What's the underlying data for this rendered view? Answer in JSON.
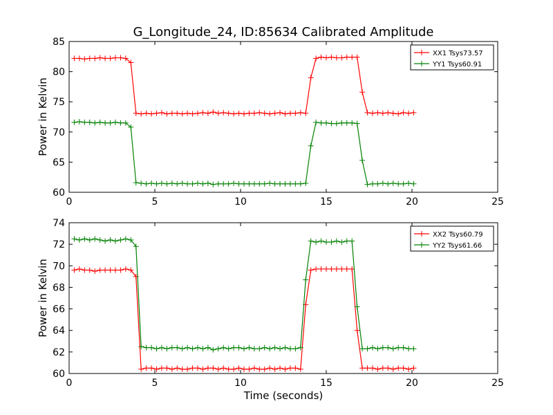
{
  "chart_data": [
    {
      "type": "line",
      "title": "G_Longitude_24, ID:85634 Calibrated Amplitude",
      "xlabel": "",
      "ylabel": "Power in Kelvin",
      "xlim": [
        0,
        25
      ],
      "ylim": [
        60,
        85
      ],
      "xticks": [
        "0",
        "5",
        "10",
        "15",
        "20",
        "25"
      ],
      "yticks": [
        "60",
        "65",
        "70",
        "75",
        "80",
        "85"
      ],
      "legend_position": "top-right",
      "grid": false,
      "x": [
        0.3,
        0.6,
        0.9,
        1.2,
        1.5,
        1.8,
        2.1,
        2.4,
        2.7,
        3.0,
        3.3,
        3.6,
        3.9,
        4.2,
        4.5,
        4.8,
        5.1,
        5.4,
        5.7,
        6.0,
        6.3,
        6.6,
        6.9,
        7.2,
        7.5,
        7.8,
        8.1,
        8.4,
        8.7,
        9.0,
        9.3,
        9.6,
        9.9,
        10.2,
        10.5,
        10.8,
        11.1,
        11.4,
        11.7,
        12.0,
        12.3,
        12.6,
        12.9,
        13.2,
        13.5,
        13.8,
        14.1,
        14.4,
        14.7,
        15.0,
        15.3,
        15.6,
        15.9,
        16.2,
        16.5,
        16.8,
        17.1,
        17.4,
        17.7,
        18.0,
        18.3,
        18.6,
        18.9,
        19.2,
        19.5,
        19.8,
        20.1
      ],
      "series": [
        {
          "name": "XX1 Tsys73.57",
          "color": "#ff0000",
          "values": [
            82.2,
            82.2,
            82.1,
            82.2,
            82.2,
            82.3,
            82.2,
            82.2,
            82.3,
            82.3,
            82.2,
            81.5,
            73.1,
            73.0,
            73.1,
            73.0,
            73.1,
            73.2,
            73.0,
            73.1,
            73.1,
            73.0,
            73.1,
            73.0,
            73.1,
            73.2,
            73.1,
            73.3,
            73.1,
            73.2,
            73.1,
            73.0,
            73.1,
            73.0,
            73.1,
            73.1,
            73.2,
            73.1,
            73.0,
            73.1,
            73.2,
            73.0,
            73.1,
            73.1,
            73.2,
            73.1,
            79.0,
            82.2,
            82.4,
            82.3,
            82.4,
            82.3,
            82.3,
            82.4,
            82.4,
            82.4,
            76.6,
            73.2,
            73.1,
            73.2,
            73.1,
            73.2,
            73.1,
            73.0,
            73.2,
            73.1,
            73.2
          ]
        },
        {
          "name": "YY1 Tsys60.91",
          "color": "#008000",
          "values": [
            71.6,
            71.7,
            71.6,
            71.6,
            71.5,
            71.6,
            71.5,
            71.5,
            71.6,
            71.5,
            71.5,
            70.8,
            61.6,
            61.5,
            61.4,
            61.5,
            61.4,
            61.5,
            61.4,
            61.5,
            61.4,
            61.5,
            61.4,
            61.4,
            61.5,
            61.4,
            61.5,
            61.3,
            61.4,
            61.4,
            61.4,
            61.5,
            61.4,
            61.4,
            61.4,
            61.4,
            61.4,
            61.4,
            61.5,
            61.4,
            61.4,
            61.4,
            61.4,
            61.4,
            61.4,
            61.5,
            67.7,
            71.6,
            71.5,
            71.5,
            71.4,
            71.4,
            71.5,
            71.5,
            71.5,
            71.4,
            65.3,
            61.3,
            61.4,
            61.4,
            61.5,
            61.4,
            61.5,
            61.4,
            61.4,
            61.5,
            61.4
          ]
        }
      ]
    },
    {
      "type": "line",
      "title": "",
      "xlabel": "Time (seconds)",
      "ylabel": "Power in Kelvin",
      "xlim": [
        0,
        25
      ],
      "ylim": [
        60,
        74
      ],
      "xticks": [
        "0",
        "5",
        "10",
        "15",
        "20",
        "25"
      ],
      "yticks": [
        "60",
        "62",
        "64",
        "66",
        "68",
        "70",
        "72",
        "74"
      ],
      "legend_position": "top-right",
      "grid": false,
      "x": [
        0.3,
        0.6,
        0.9,
        1.2,
        1.5,
        1.8,
        2.1,
        2.4,
        2.7,
        3.0,
        3.3,
        3.6,
        3.9,
        4.2,
        4.5,
        4.8,
        5.1,
        5.4,
        5.7,
        6.0,
        6.3,
        6.6,
        6.9,
        7.2,
        7.5,
        7.8,
        8.1,
        8.4,
        8.7,
        9.0,
        9.3,
        9.6,
        9.9,
        10.2,
        10.5,
        10.8,
        11.1,
        11.4,
        11.7,
        12.0,
        12.3,
        12.6,
        12.9,
        13.2,
        13.5,
        13.8,
        14.1,
        14.4,
        14.7,
        15.0,
        15.3,
        15.6,
        15.9,
        16.2,
        16.5,
        16.8,
        17.1,
        17.4,
        17.7,
        18.0,
        18.3,
        18.6,
        18.9,
        19.2,
        19.5,
        19.8,
        20.1
      ],
      "series": [
        {
          "name": "XX2 Tsys60.79",
          "color": "#ff0000",
          "values": [
            69.6,
            69.7,
            69.6,
            69.6,
            69.5,
            69.6,
            69.6,
            69.6,
            69.6,
            69.6,
            69.7,
            69.6,
            69.0,
            60.4,
            60.5,
            60.5,
            60.4,
            60.5,
            60.5,
            60.4,
            60.5,
            60.4,
            60.4,
            60.5,
            60.5,
            60.4,
            60.5,
            60.5,
            60.4,
            60.5,
            60.4,
            60.4,
            60.5,
            60.4,
            60.4,
            60.5,
            60.4,
            60.4,
            60.5,
            60.4,
            60.5,
            60.4,
            60.5,
            60.5,
            60.4,
            66.4,
            69.6,
            69.7,
            69.7,
            69.7,
            69.7,
            69.7,
            69.7,
            69.7,
            69.7,
            64.0,
            60.5,
            60.5,
            60.5,
            60.4,
            60.5,
            60.5,
            60.4,
            60.5,
            60.5,
            60.4,
            60.5
          ]
        },
        {
          "name": "YY2 Tsys61.66",
          "color": "#008000",
          "values": [
            72.5,
            72.4,
            72.5,
            72.4,
            72.5,
            72.4,
            72.3,
            72.4,
            72.3,
            72.4,
            72.5,
            72.4,
            71.8,
            62.5,
            62.4,
            62.4,
            62.3,
            62.4,
            62.3,
            62.4,
            62.4,
            62.3,
            62.4,
            62.3,
            62.4,
            62.3,
            62.4,
            62.2,
            62.3,
            62.4,
            62.3,
            62.4,
            62.4,
            62.3,
            62.4,
            62.3,
            62.3,
            62.4,
            62.3,
            62.4,
            62.3,
            62.4,
            62.3,
            62.3,
            62.4,
            68.7,
            72.3,
            72.2,
            72.3,
            72.2,
            72.2,
            72.3,
            72.2,
            72.3,
            72.3,
            66.2,
            62.3,
            62.3,
            62.4,
            62.3,
            62.4,
            62.4,
            62.3,
            62.4,
            62.4,
            62.3,
            62.3
          ]
        }
      ]
    }
  ]
}
